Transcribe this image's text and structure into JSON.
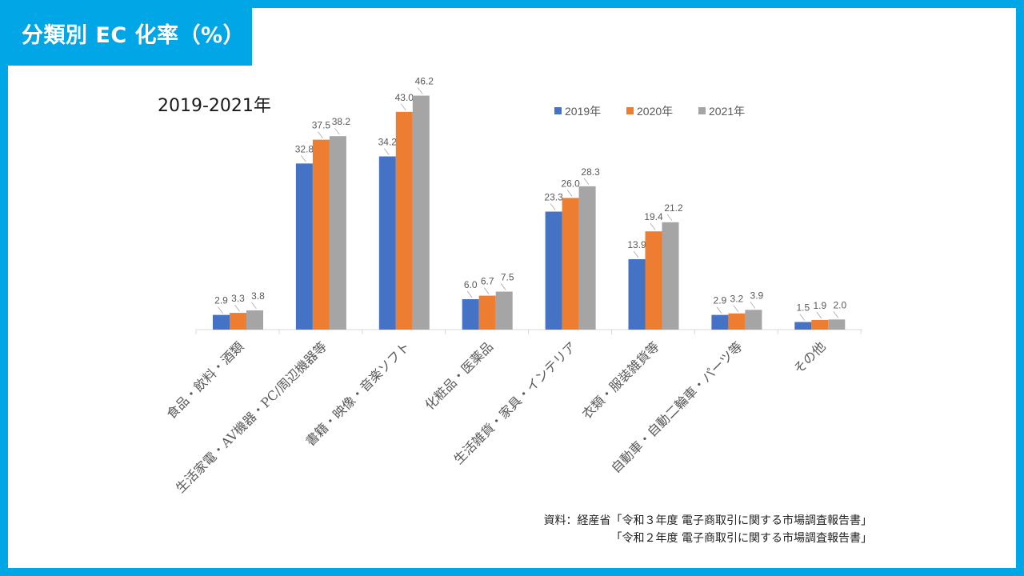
{
  "title": "分類別 EC 化率（%）",
  "subtitle": "2019-2021年",
  "source_lines": [
    "資料：経産省「令和３年度 電子商取引に関する市場調査報告書」",
    "「令和２年度 電子商取引に関する市場調査報告書」"
  ],
  "colors": {
    "accent": "#00a6e6",
    "s2019": "#4472c4",
    "s2020": "#ed7d31",
    "s2021": "#a5a5a5"
  },
  "chart_data": {
    "type": "bar",
    "title": "分類別 EC 化率（%）",
    "subtitle": "2019-2021年",
    "xlabel": "",
    "ylabel": "",
    "ylim": [
      0,
      50
    ],
    "grid": false,
    "legend_position": "top-right",
    "categories": [
      "食品・飲料・酒類",
      "生活家電・AV機器・PC/周辺機器等",
      "書籍・映像・音楽ソフト",
      "化粧品・医薬品",
      "生活雑貨・家具・インテリア",
      "衣類・服装雑貨等",
      "自動車・自動二輪車・パーツ等",
      "その他"
    ],
    "series": [
      {
        "name": "2019年",
        "color": "#4472c4",
        "values": [
          2.9,
          32.8,
          34.2,
          6.0,
          23.3,
          13.9,
          2.9,
          1.5
        ],
        "labels": [
          "2.9",
          "32.8",
          "34.2",
          "6.0",
          "23.3",
          "13.9",
          "2.9",
          "1.5"
        ]
      },
      {
        "name": "2020年",
        "color": "#ed7d31",
        "values": [
          3.3,
          37.5,
          43.0,
          6.7,
          26.0,
          19.4,
          3.2,
          1.9
        ],
        "labels": [
          "3.3",
          "37.5",
          "43.0",
          "6.7",
          "26.0",
          "19.4",
          "3.2",
          "1.9"
        ]
      },
      {
        "name": "2021年",
        "color": "#a5a5a5",
        "values": [
          3.8,
          38.2,
          46.2,
          7.5,
          28.3,
          21.2,
          3.9,
          2.0
        ],
        "labels": [
          "3.8",
          "38.2",
          "46.2",
          "7.5",
          "28.3",
          "21.2",
          "3.9",
          "2.0"
        ]
      }
    ]
  }
}
